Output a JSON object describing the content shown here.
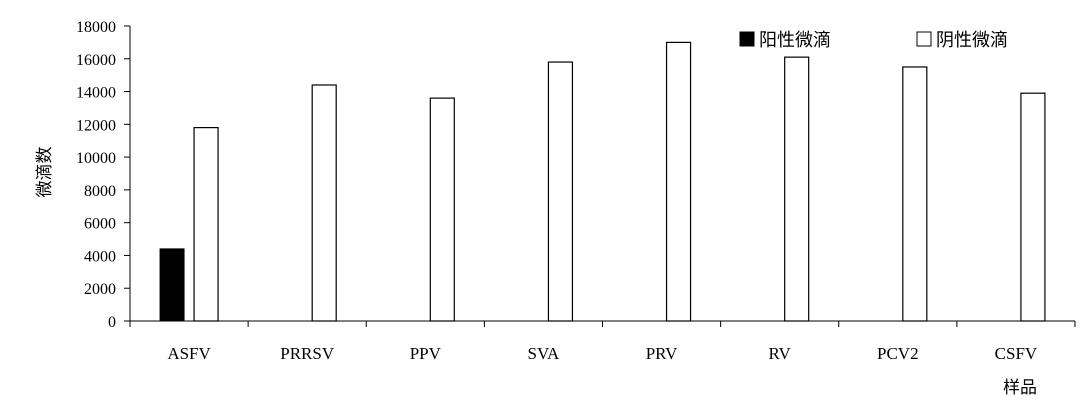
{
  "chart_data": {
    "type": "bar",
    "title": "",
    "xlabel": "样品",
    "ylabel": "微滴数",
    "ylim": [
      0,
      18000
    ],
    "yticks": [
      0,
      2000,
      4000,
      6000,
      8000,
      10000,
      12000,
      14000,
      16000,
      18000
    ],
    "grid": false,
    "legend_position": "top-right",
    "categories": [
      "ASFV",
      "PRRSV",
      "PPV",
      "SVA",
      "PRV",
      "RV",
      "PCV2",
      "CSFV"
    ],
    "series": [
      {
        "name": "阳性微滴",
        "color": "#000000",
        "values": [
          4400,
          0,
          0,
          0,
          0,
          0,
          0,
          0
        ]
      },
      {
        "name": "阴性微滴",
        "color": "#ffffff",
        "values": [
          11800,
          14400,
          13600,
          15800,
          17000,
          16100,
          15500,
          13900
        ]
      }
    ]
  }
}
